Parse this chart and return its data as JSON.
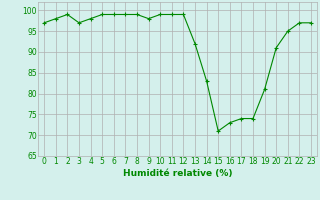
{
  "x": [
    0,
    1,
    2,
    3,
    4,
    5,
    6,
    7,
    8,
    9,
    10,
    11,
    12,
    13,
    14,
    15,
    16,
    17,
    18,
    19,
    20,
    21,
    22,
    23
  ],
  "y": [
    97,
    98,
    99,
    97,
    98,
    99,
    99,
    99,
    99,
    98,
    99,
    99,
    99,
    92,
    83,
    71,
    73,
    74,
    74,
    81,
    91,
    95,
    97,
    97
  ],
  "line_color": "#008800",
  "marker": "+",
  "bg_color": "#d4f0ec",
  "grid_color": "#b0b0b0",
  "xlabel": "Humidité relative (%)",
  "xlabel_color": "#008800",
  "ylim": [
    65,
    102
  ],
  "yticks": [
    65,
    70,
    75,
    80,
    85,
    90,
    95,
    100
  ],
  "xtick_labels": [
    "0",
    "1",
    "2",
    "3",
    "4",
    "5",
    "6",
    "7",
    "8",
    "9",
    "10",
    "11",
    "12",
    "13",
    "14",
    "15",
    "16",
    "17",
    "18",
    "19",
    "20",
    "21",
    "22",
    "23"
  ],
  "axis_fontsize": 5.5,
  "label_fontsize": 6.5
}
